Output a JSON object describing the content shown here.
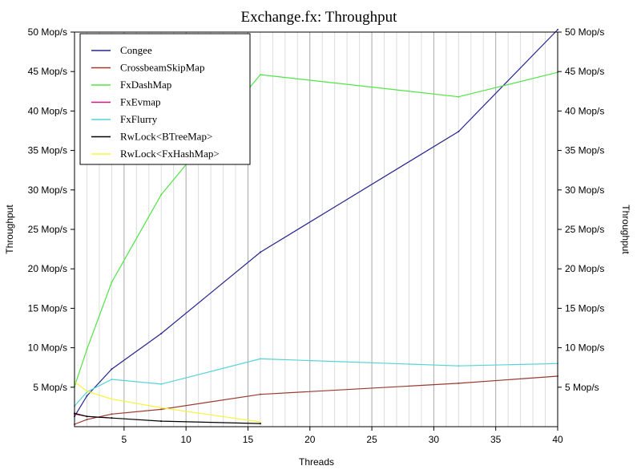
{
  "chart_data": {
    "type": "line",
    "title": "Exchange.fx: Throughput",
    "xlabel": "Threads",
    "ylabel": "Throughput",
    "ylabel_right": "Throughput",
    "xlim": [
      1,
      40
    ],
    "ylim": [
      0,
      50
    ],
    "x_ticks": [
      5,
      10,
      15,
      20,
      25,
      30,
      35,
      40
    ],
    "y_ticks": [
      5,
      10,
      15,
      20,
      25,
      30,
      35,
      40,
      45,
      50
    ],
    "y_tick_labels": [
      "5 Mop/s",
      "10 Mop/s",
      "15 Mop/s",
      "20 Mop/s",
      "25 Mop/s",
      "30 Mop/s",
      "35 Mop/s",
      "40 Mop/s",
      "45 Mop/s",
      "50 Mop/s"
    ],
    "grid": "vertical-per-thread",
    "legend_position": "top-left",
    "series": [
      {
        "name": "Congee",
        "color": "#27268f",
        "x": [
          1,
          2,
          4,
          8,
          16,
          32,
          40
        ],
        "y": [
          1.3,
          3.9,
          7.3,
          11.8,
          22.1,
          37.4,
          50.3
        ]
      },
      {
        "name": "CrossbeamSkipMap",
        "color": "#993a2f",
        "x": [
          1,
          2,
          4,
          8,
          16,
          32,
          40
        ],
        "y": [
          0.3,
          0.9,
          1.6,
          2.2,
          4.1,
          5.5,
          6.4
        ]
      },
      {
        "name": "FxDashMap",
        "color": "#4fe544",
        "x": [
          1,
          2,
          4,
          8,
          16,
          32,
          40
        ],
        "y": [
          5.1,
          9.8,
          18.3,
          29.4,
          44.6,
          41.8,
          44.9
        ]
      },
      {
        "name": "FxEvmap",
        "color": "#cc1a82",
        "x": [
          1,
          2,
          4
        ],
        "y": [
          1.6,
          1.3,
          1.1
        ]
      },
      {
        "name": "FxFlurry",
        "color": "#55d4d6",
        "x": [
          1,
          2,
          4,
          8,
          16,
          32,
          40
        ],
        "y": [
          2.6,
          4.4,
          6.0,
          5.4,
          8.6,
          7.7,
          8.0
        ]
      },
      {
        "name": "RwLock<BTreeMap>",
        "color": "#000000",
        "x": [
          1,
          2,
          4,
          8,
          16
        ],
        "y": [
          1.7,
          1.3,
          1.1,
          0.7,
          0.4
        ]
      },
      {
        "name": "RwLock<FxHashMap>",
        "color": "#f5f53c",
        "x": [
          1,
          2,
          4,
          8,
          16
        ],
        "y": [
          5.7,
          4.5,
          3.5,
          2.4,
          0.6
        ]
      }
    ]
  }
}
